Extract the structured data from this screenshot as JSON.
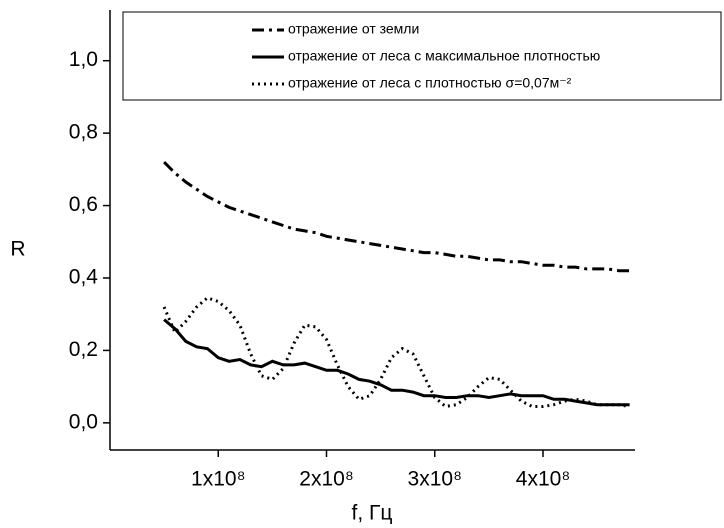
{
  "chart_data": {
    "type": "line",
    "xlabel": "f, Гц",
    "ylabel": "R",
    "x": [
      50000000.0,
      60000000.0,
      70000000.0,
      80000000.0,
      90000000.0,
      100000000.0,
      110000000.0,
      120000000.0,
      130000000.0,
      140000000.0,
      150000000.0,
      160000000.0,
      170000000.0,
      180000000.0,
      190000000.0,
      200000000.0,
      210000000.0,
      220000000.0,
      230000000.0,
      240000000.0,
      250000000.0,
      260000000.0,
      270000000.0,
      280000000.0,
      290000000.0,
      300000000.0,
      310000000.0,
      320000000.0,
      330000000.0,
      340000000.0,
      350000000.0,
      360000000.0,
      370000000.0,
      380000000.0,
      390000000.0,
      400000000.0,
      410000000.0,
      420000000.0,
      430000000.0,
      440000000.0,
      450000000.0,
      460000000.0,
      470000000.0,
      480000000.0
    ],
    "series": [
      {
        "name": "отражение от земли",
        "color": "#000000",
        "style": "dashdot",
        "values": [
          0.72,
          0.69,
          0.665,
          0.645,
          0.625,
          0.61,
          0.595,
          0.585,
          0.575,
          0.565,
          0.555,
          0.545,
          0.535,
          0.53,
          0.525,
          0.515,
          0.51,
          0.505,
          0.5,
          0.495,
          0.49,
          0.485,
          0.48,
          0.475,
          0.47,
          0.47,
          0.465,
          0.46,
          0.46,
          0.455,
          0.45,
          0.45,
          0.445,
          0.445,
          0.44,
          0.435,
          0.435,
          0.43,
          0.43,
          0.425,
          0.425,
          0.425,
          0.42,
          0.42
        ]
      },
      {
        "name": "отражение от леса с максимальное плотностью",
        "color": "#000000",
        "style": "solid",
        "values": [
          0.285,
          0.26,
          0.225,
          0.21,
          0.205,
          0.18,
          0.17,
          0.175,
          0.16,
          0.155,
          0.17,
          0.16,
          0.16,
          0.165,
          0.155,
          0.145,
          0.145,
          0.135,
          0.12,
          0.115,
          0.105,
          0.09,
          0.09,
          0.085,
          0.075,
          0.075,
          0.07,
          0.07,
          0.075,
          0.075,
          0.07,
          0.075,
          0.08,
          0.075,
          0.075,
          0.075,
          0.065,
          0.065,
          0.06,
          0.055,
          0.05,
          0.05,
          0.05,
          0.05
        ]
      },
      {
        "name": "отражение от леса с плотностью σ=0,07м⁻²",
        "color": "#000000",
        "style": "dotted",
        "values": [
          0.32,
          0.25,
          0.28,
          0.32,
          0.345,
          0.335,
          0.31,
          0.27,
          0.19,
          0.13,
          0.12,
          0.15,
          0.22,
          0.27,
          0.265,
          0.23,
          0.16,
          0.1,
          0.065,
          0.075,
          0.12,
          0.18,
          0.205,
          0.19,
          0.13,
          0.07,
          0.045,
          0.05,
          0.07,
          0.1,
          0.125,
          0.12,
          0.09,
          0.06,
          0.045,
          0.045,
          0.05,
          0.06,
          0.065,
          0.06,
          0.05,
          0.05,
          0.05,
          0.045
        ]
      }
    ],
    "xlim": [
      0,
      485000000.0
    ],
    "ylim": [
      -0.075,
      1.14
    ],
    "xticks": [
      {
        "value": 100000000.0,
        "label": "1x10⁸"
      },
      {
        "value": 200000000.0,
        "label": "2x10⁸"
      },
      {
        "value": 300000000.0,
        "label": "3x10⁸"
      },
      {
        "value": 400000000.0,
        "label": "4x10⁸"
      }
    ],
    "yticks": [
      {
        "value": 0,
        "label": "0,0"
      },
      {
        "value": 0.2,
        "label": "0,2"
      },
      {
        "value": 0.4,
        "label": "0,4"
      },
      {
        "value": 0.6,
        "label": "0,6"
      },
      {
        "value": 0.8,
        "label": "0,8"
      },
      {
        "value": 1,
        "label": "1,0"
      }
    ],
    "legend": "top-right"
  }
}
